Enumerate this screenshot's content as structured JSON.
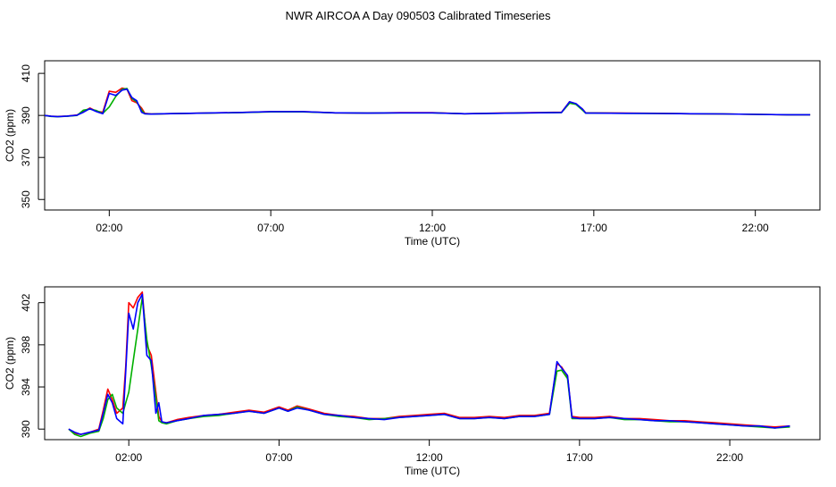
{
  "title": "NWR AIRCOA A  Day 090503  Calibrated Timeseries",
  "colors": {
    "red": "#ff0000",
    "green": "#00b000",
    "blue": "#0000ff",
    "axis": "#000000"
  },
  "chart_data": [
    {
      "type": "line",
      "xlabel": "Time (UTC)",
      "ylabel": "CO2 (ppm)",
      "x_unit": "hours UTC",
      "xlim": [
        0,
        24
      ],
      "ylim": [
        345,
        416
      ],
      "x_ticks": [
        2,
        7,
        12,
        17,
        22
      ],
      "x_tick_labels": [
        "02:00",
        "07:00",
        "12:00",
        "17:00",
        "22:00"
      ],
      "y_ticks": [
        350,
        370,
        390,
        410
      ],
      "y_tick_labels": [
        "350",
        "370",
        "390",
        "410"
      ],
      "series": [
        {
          "color": "red",
          "x": [
            0,
            0.2,
            0.4,
            0.7,
            1.0,
            1.2,
            1.4,
            1.6,
            1.8,
            2.0,
            2.2,
            2.4,
            2.55,
            2.7,
            2.85,
            3.0,
            3.1,
            3.3,
            3.7,
            4.5,
            6,
            7,
            8,
            9,
            10,
            11,
            12,
            13,
            14,
            15,
            16.0,
            16.25,
            16.45,
            16.65,
            16.75,
            17,
            18,
            19,
            20,
            21,
            22,
            23,
            23.7
          ],
          "y": [
            390.0,
            389.6,
            389.5,
            389.7,
            390.2,
            391.8,
            393.5,
            392.0,
            391.5,
            401.5,
            401.0,
            403.0,
            402.5,
            397.0,
            396.0,
            393.5,
            391.0,
            390.7,
            390.8,
            391.0,
            391.4,
            391.8,
            391.8,
            391.2,
            391.1,
            391.3,
            391.3,
            390.8,
            391.1,
            391.3,
            391.5,
            396.5,
            395.5,
            393.0,
            391.2,
            391.2,
            391.1,
            391.0,
            390.8,
            390.7,
            390.5,
            390.3,
            390.3
          ]
        },
        {
          "color": "green",
          "x": [
            0,
            0.2,
            0.4,
            0.7,
            1.0,
            1.2,
            1.4,
            1.6,
            1.8,
            2.0,
            2.2,
            2.4,
            2.55,
            2.7,
            2.85,
            3.0,
            3.1,
            3.3,
            3.7,
            4.5,
            6,
            7,
            8,
            9,
            10,
            11,
            12,
            13,
            14,
            15,
            16.0,
            16.25,
            16.45,
            16.65,
            16.75,
            17,
            18,
            19,
            20,
            21,
            22,
            23,
            23.7
          ],
          "y": [
            390.0,
            389.5,
            389.4,
            389.6,
            390.0,
            392.5,
            393.0,
            392.3,
            391.0,
            394.0,
            399.0,
            402.5,
            402.8,
            398.0,
            396.5,
            392.5,
            390.8,
            390.6,
            390.8,
            391.0,
            391.3,
            391.7,
            391.7,
            391.2,
            391.1,
            391.2,
            391.2,
            390.8,
            391.0,
            391.2,
            391.4,
            395.8,
            395.2,
            392.5,
            391.1,
            391.1,
            391.0,
            390.9,
            390.8,
            390.7,
            390.5,
            390.3,
            390.3
          ]
        },
        {
          "color": "blue",
          "x": [
            0,
            0.2,
            0.4,
            0.7,
            1.0,
            1.2,
            1.4,
            1.6,
            1.8,
            2.0,
            2.2,
            2.4,
            2.55,
            2.7,
            2.85,
            3.0,
            3.1,
            3.3,
            3.7,
            4.5,
            6,
            7,
            8,
            9,
            10,
            11,
            12,
            13,
            14,
            15,
            16.0,
            16.25,
            16.45,
            16.65,
            16.75,
            17,
            18,
            19,
            20,
            21,
            22,
            23,
            23.7
          ],
          "y": [
            390.0,
            389.6,
            389.4,
            389.7,
            390.1,
            391.5,
            393.2,
            391.8,
            390.8,
            400.5,
            399.5,
            402.0,
            402.5,
            398.5,
            397.0,
            391.5,
            390.8,
            390.6,
            390.8,
            391.0,
            391.4,
            391.8,
            391.8,
            391.2,
            391.1,
            391.2,
            391.2,
            390.8,
            391.0,
            391.2,
            391.4,
            396.5,
            395.6,
            393.0,
            391.1,
            391.1,
            391.0,
            390.9,
            390.8,
            390.7,
            390.5,
            390.3,
            390.3
          ]
        }
      ]
    },
    {
      "type": "line",
      "xlabel": "Time (UTC)",
      "ylabel": "CO2 (ppm)",
      "x_unit": "hours UTC",
      "xlim": [
        -0.8,
        25.0
      ],
      "ylim": [
        389.0,
        403.5
      ],
      "x_ticks": [
        2,
        7,
        12,
        17,
        22
      ],
      "x_tick_labels": [
        "02:00",
        "07:00",
        "12:00",
        "17:00",
        "22:00"
      ],
      "y_ticks": [
        390,
        394,
        398,
        402
      ],
      "y_tick_labels": [
        "390",
        "394",
        "398",
        "402"
      ],
      "series": [
        {
          "color": "red",
          "x": [
            0,
            0.2,
            0.4,
            0.7,
            1.0,
            1.15,
            1.3,
            1.45,
            1.6,
            1.8,
            1.9,
            2.0,
            2.15,
            2.3,
            2.45,
            2.6,
            2.75,
            2.9,
            3.0,
            3.1,
            3.25,
            3.6,
            4.0,
            4.5,
            5.0,
            5.5,
            6.0,
            6.5,
            7.0,
            7.3,
            7.6,
            8.0,
            8.5,
            9.0,
            9.5,
            10.0,
            10.5,
            11.0,
            11.5,
            12.0,
            12.5,
            13.0,
            13.5,
            14.0,
            14.5,
            15.0,
            15.5,
            16.0,
            16.25,
            16.4,
            16.6,
            16.75,
            17.0,
            17.5,
            18.0,
            18.5,
            19.0,
            19.5,
            20.0,
            20.5,
            21.0,
            21.5,
            22.0,
            22.5,
            23.0,
            23.5,
            24.0
          ],
          "y": [
            390.0,
            389.6,
            389.5,
            389.7,
            390.0,
            391.8,
            393.8,
            392.8,
            391.5,
            392.0,
            396.0,
            402.0,
            401.5,
            402.5,
            403.0,
            398.0,
            397.0,
            393.5,
            391.2,
            390.7,
            390.6,
            390.9,
            391.1,
            391.3,
            391.4,
            391.6,
            391.8,
            391.6,
            392.1,
            391.8,
            392.2,
            391.9,
            391.5,
            391.3,
            391.2,
            391.0,
            391.0,
            391.2,
            391.3,
            391.4,
            391.5,
            391.1,
            391.1,
            391.2,
            391.1,
            391.3,
            391.3,
            391.5,
            396.2,
            395.9,
            395.0,
            391.2,
            391.1,
            391.1,
            391.2,
            391.0,
            391.0,
            390.9,
            390.8,
            390.8,
            390.7,
            390.6,
            390.5,
            390.4,
            390.3,
            390.2,
            390.3
          ]
        },
        {
          "color": "green",
          "x": [
            0,
            0.2,
            0.4,
            0.7,
            1.0,
            1.15,
            1.3,
            1.45,
            1.6,
            1.8,
            1.9,
            2.0,
            2.15,
            2.3,
            2.45,
            2.6,
            2.75,
            2.9,
            3.0,
            3.1,
            3.25,
            3.6,
            4.0,
            4.5,
            5.0,
            5.5,
            6.0,
            6.5,
            7.0,
            7.3,
            7.6,
            8.0,
            8.5,
            9.0,
            9.5,
            10.0,
            10.5,
            11.0,
            11.5,
            12.0,
            12.5,
            13.0,
            13.5,
            14.0,
            14.5,
            15.0,
            15.5,
            16.0,
            16.25,
            16.4,
            16.6,
            16.75,
            17.0,
            17.5,
            18.0,
            18.5,
            19.0,
            19.5,
            20.0,
            20.5,
            21.0,
            21.5,
            22.0,
            22.5,
            23.0,
            23.5,
            24.0
          ],
          "y": [
            390.0,
            389.5,
            389.3,
            389.6,
            389.8,
            391.0,
            392.8,
            393.3,
            392.0,
            391.5,
            392.5,
            393.5,
            396.5,
            399.5,
            402.5,
            398.5,
            396.0,
            393.0,
            390.8,
            390.6,
            390.5,
            390.8,
            391.0,
            391.2,
            391.3,
            391.5,
            391.7,
            391.5,
            392.0,
            391.7,
            392.1,
            391.8,
            391.4,
            391.2,
            391.1,
            390.9,
            391.0,
            391.1,
            391.2,
            391.3,
            391.4,
            391.0,
            391.0,
            391.1,
            391.0,
            391.2,
            391.2,
            391.4,
            395.5,
            395.6,
            394.8,
            391.0,
            391.0,
            391.0,
            391.1,
            390.9,
            390.9,
            390.8,
            390.7,
            390.7,
            390.6,
            390.5,
            390.4,
            390.3,
            390.2,
            390.1,
            390.2
          ]
        },
        {
          "color": "blue",
          "x": [
            0,
            0.2,
            0.4,
            0.7,
            1.0,
            1.15,
            1.3,
            1.45,
            1.6,
            1.8,
            1.9,
            2.0,
            2.15,
            2.3,
            2.45,
            2.6,
            2.75,
            2.9,
            3.0,
            3.1,
            3.25,
            3.6,
            4.0,
            4.5,
            5.0,
            5.5,
            6.0,
            6.5,
            7.0,
            7.3,
            7.6,
            8.0,
            8.5,
            9.0,
            9.5,
            10.0,
            10.5,
            11.0,
            11.5,
            12.0,
            12.5,
            13.0,
            13.5,
            14.0,
            14.5,
            15.0,
            15.5,
            16.0,
            16.25,
            16.4,
            16.6,
            16.75,
            17.0,
            17.5,
            18.0,
            18.5,
            19.0,
            19.5,
            20.0,
            20.5,
            21.0,
            21.5,
            22.0,
            22.5,
            23.0,
            23.5,
            24.0
          ],
          "y": [
            390.0,
            389.7,
            389.5,
            389.7,
            389.9,
            391.5,
            393.3,
            392.5,
            391.0,
            390.5,
            395.5,
            401.0,
            399.5,
            402.0,
            402.8,
            397.0,
            396.5,
            391.5,
            392.5,
            390.7,
            390.6,
            390.8,
            391.0,
            391.3,
            391.4,
            391.5,
            391.7,
            391.5,
            392.0,
            391.7,
            392.0,
            391.8,
            391.4,
            391.3,
            391.1,
            391.0,
            390.9,
            391.1,
            391.2,
            391.3,
            391.4,
            391.0,
            391.0,
            391.1,
            391.0,
            391.2,
            391.2,
            391.4,
            396.4,
            395.8,
            395.1,
            391.1,
            391.0,
            391.0,
            391.1,
            391.0,
            390.9,
            390.8,
            390.8,
            390.7,
            390.6,
            390.5,
            390.4,
            390.3,
            390.3,
            390.1,
            390.3
          ]
        }
      ]
    }
  ]
}
